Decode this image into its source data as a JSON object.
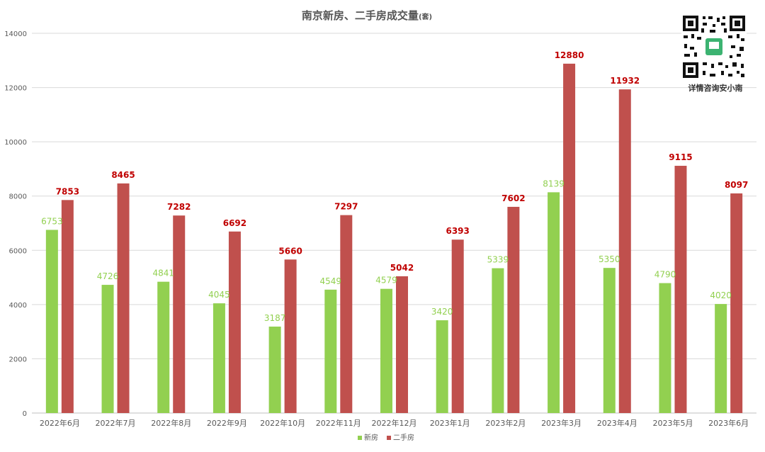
{
  "chart_data": {
    "type": "bar",
    "title": "南京新房、二手房成交量",
    "title_unit": "(套)",
    "categories": [
      "2022年6月",
      "2022年7月",
      "2022年8月",
      "2022年9月",
      "2022年10月",
      "2022年11月",
      "2022年12月",
      "2023年1月",
      "2023年2月",
      "2023年3月",
      "2023年4月",
      "2023年5月",
      "2023年6月"
    ],
    "series": [
      {
        "name": "新房",
        "color": "#92d050",
        "values": [
          6753,
          4726,
          4841,
          4045,
          3187,
          4549,
          4579,
          3420,
          5339,
          8139,
          5350,
          4790,
          4020
        ]
      },
      {
        "name": "二手房",
        "color": "#c0504d",
        "values": [
          7853,
          8465,
          7282,
          6692,
          5660,
          7297,
          5042,
          6393,
          7602,
          12880,
          11932,
          9115,
          8097
        ]
      }
    ],
    "ylim": [
      0,
      14000
    ],
    "yticks": [
      0,
      2000,
      4000,
      6000,
      8000,
      10000,
      12000,
      14000
    ],
    "grid": true,
    "legend_position": "bottom-center"
  },
  "qr": {
    "caption": "详情咨询安小南"
  }
}
